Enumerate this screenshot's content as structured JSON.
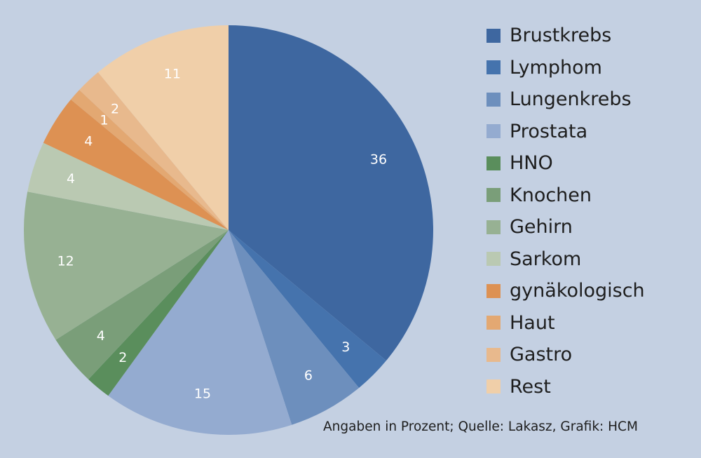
{
  "chart_data": {
    "type": "pie",
    "unit": "Prozent",
    "slices": [
      {
        "label": "Brustkrebs",
        "value": 36,
        "color": "#3e67a0"
      },
      {
        "label": "Lymphom",
        "value": 3,
        "color": "#4573ad"
      },
      {
        "label": "Lungenkrebs",
        "value": 6,
        "color": "#6d8fbd"
      },
      {
        "label": "Prostata",
        "value": 15,
        "color": "#94abd0"
      },
      {
        "label": "HNO",
        "value": 2,
        "color": "#5a8e5c"
      },
      {
        "label": "Knochen",
        "value": 4,
        "color": "#7a9e79"
      },
      {
        "label": "Gehirn",
        "value": 12,
        "color": "#97b193"
      },
      {
        "label": "Sarkom",
        "value": 4,
        "color": "#bac9b2"
      },
      {
        "label": "gynäkologisch",
        "value": 4,
        "color": "#dd9153"
      },
      {
        "label": "Haut",
        "value": 1,
        "color": "#e3a872"
      },
      {
        "label": "Gastro",
        "value": 2,
        "color": "#e8b98d"
      },
      {
        "label": "Rest",
        "value": 11,
        "color": "#f0cfa9"
      }
    ],
    "legend_position": "right",
    "source_note": "Angaben in Prozent; Quelle: Lakasz, Grafik: HCM"
  }
}
